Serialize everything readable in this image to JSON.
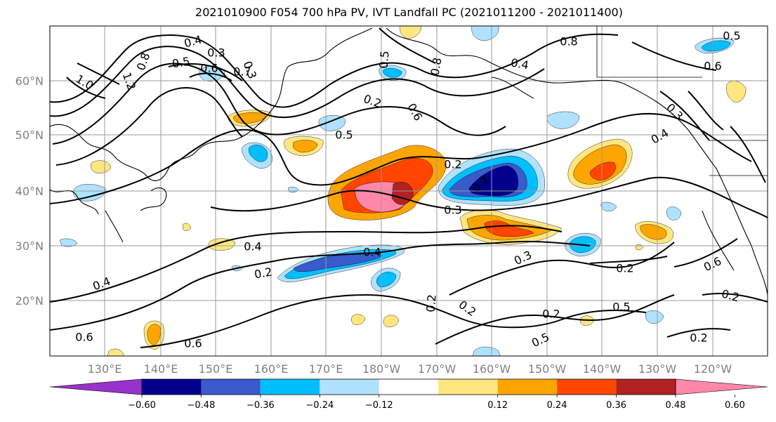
{
  "title": "2021010900 F054 700 hPa PV, IVT Landfall PC (2021011200 - 2021011400)",
  "map": {
    "lat_ticks": [
      "60°N",
      "50°N",
      "40°N",
      "30°N",
      "20°N"
    ],
    "lon_ticks": [
      "130°E",
      "140°E",
      "150°E",
      "160°E",
      "170°E",
      "180°W",
      "170°W",
      "160°W",
      "150°W",
      "140°W",
      "130°W",
      "120°W"
    ],
    "contour_labels": [
      "0.4",
      "0.3",
      "0.5",
      "0.6",
      "0.7",
      "1.0",
      "1.2",
      "0.8",
      "0.3",
      "0.2",
      "0.5",
      "0.8",
      "0.6",
      "0.5",
      "0.8",
      "0.4",
      "0.6",
      "0.5",
      "0.3",
      "0.4",
      "0.2",
      "0.2",
      "0.3",
      "0.3",
      "0.4",
      "0.2",
      "0.4",
      "0.2",
      "0.2",
      "0.2",
      "0.2",
      "0.5",
      "0.2",
      "0.2",
      "0.6",
      "0.4",
      "0.6",
      "0.6",
      "0.5"
    ]
  },
  "colorbar": {
    "ticks": [
      "−0.60",
      "−0.48",
      "−0.36",
      "−0.24",
      "−0.12",
      "0.12",
      "0.24",
      "0.36",
      "0.48",
      "0.60"
    ],
    "colors": [
      "#9932cc",
      "#00008b",
      "#3a5bcc",
      "#00bfff",
      "#b0e2ff",
      "#ffffff",
      "#ffe680",
      "#ffa500",
      "#ff4500",
      "#b22222",
      "#ff88aa"
    ]
  }
}
